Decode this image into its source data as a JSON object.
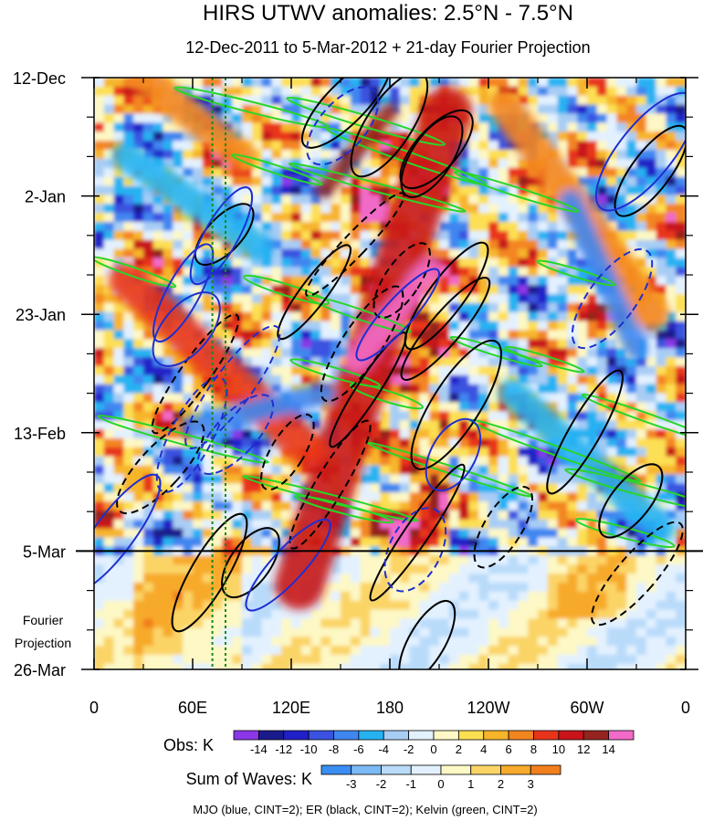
{
  "chart_data": {
    "type": "heatmap",
    "title": "HIRS UTWV anomalies: 2.5°N - 7.5°N",
    "subtitle": "12-Dec-2011 to 5-Mar-2012 + 21-day Fourier Projection",
    "x_ticks": [
      {
        "lon": 0,
        "label": "0"
      },
      {
        "lon": 60,
        "label": "60E"
      },
      {
        "lon": 120,
        "label": "120E"
      },
      {
        "lon": 180,
        "label": "180"
      },
      {
        "lon": 240,
        "label": "120W"
      },
      {
        "lon": 300,
        "label": "60W"
      },
      {
        "lon": 360,
        "label": "0"
      }
    ],
    "y_ticks": [
      {
        "day": 0,
        "label": "12-Dec"
      },
      {
        "day": 21,
        "label": "2-Jan"
      },
      {
        "day": 42,
        "label": "23-Jan"
      },
      {
        "day": 63,
        "label": "13-Feb"
      },
      {
        "day": 84,
        "label": "5-Mar"
      },
      {
        "day": 105,
        "label": "26-Mar"
      }
    ],
    "x_range_deg": [
      0,
      360
    ],
    "y_range_days": [
      0,
      105
    ],
    "observation_end_day": 84,
    "projection_label": [
      "Fourier",
      "Projection"
    ],
    "reference_longitudes_deg": [
      72,
      80
    ],
    "obs_colorbar": {
      "label": "Obs: K",
      "tick_labels": [
        "-14",
        "-12",
        "-10",
        "-8",
        "-6",
        "-4",
        "-2",
        "0",
        "2",
        "4",
        "6",
        "8",
        "10",
        "12",
        "14"
      ],
      "colors": [
        "#8b37e8",
        "#1a1a8c",
        "#2020c8",
        "#3a52e0",
        "#3f86f0",
        "#26b2f2",
        "#a8cdf5",
        "#e3f1ff",
        "#fdf8c5",
        "#fddf52",
        "#f7b52a",
        "#f38521",
        "#e8341a",
        "#c8141a",
        "#95241e",
        "#f26bc8"
      ]
    },
    "waves_colorbar": {
      "label": "Sum of Waves: K",
      "tick_labels": [
        "-3",
        "-2",
        "-1",
        "0",
        "1",
        "2",
        "3"
      ],
      "colors": [
        "#3a8ef2",
        "#7cbaf6",
        "#b9dbfa",
        "#e3f1ff",
        "#fdf8c5",
        "#fbd466",
        "#f7aa2c",
        "#f27f1e"
      ]
    },
    "footer": "MJO (blue, CINT=2); ER (black, CINT=2); Kelvin (green, CINT=2)",
    "contour_colors": {
      "MJO": "#1f2fd0",
      "ER": "#000000",
      "Kelvin": "#28d628"
    },
    "anomaly_bands": [
      {
        "lon_start": 215,
        "day_start": 6,
        "lon_end": 125,
        "day_end": 90,
        "width_deg": 30,
        "value": 10
      },
      {
        "lon_start": 205,
        "day_start": 34,
        "lon_end": 160,
        "day_end": 50,
        "width_deg": 16,
        "value": 14
      },
      {
        "lon_start": 180,
        "day_start": 6,
        "lon_end": 140,
        "day_end": 20,
        "width_deg": 10,
        "value": 13
      },
      {
        "lon_start": 20,
        "day_start": 36,
        "lon_end": 130,
        "day_end": 66,
        "width_deg": 22,
        "value": 8
      },
      {
        "lon_start": 250,
        "day_start": 5,
        "lon_end": 340,
        "day_end": 42,
        "width_deg": 20,
        "value": 6
      },
      {
        "lon_start": 30,
        "day_start": 0,
        "lon_end": 90,
        "day_end": 14,
        "width_deg": 18,
        "value": 6
      },
      {
        "lon_start": 60,
        "day_start": 62,
        "lon_end": 140,
        "day_end": 56,
        "width_deg": 14,
        "value": -8
      },
      {
        "lon_start": 255,
        "day_start": 56,
        "lon_end": 345,
        "day_end": 80,
        "width_deg": 18,
        "value": -6
      },
      {
        "lon_start": 20,
        "day_start": 14,
        "lon_end": 100,
        "day_end": 30,
        "width_deg": 18,
        "value": -6
      },
      {
        "lon_start": 290,
        "day_start": 22,
        "lon_end": 330,
        "day_end": 48,
        "width_deg": 14,
        "value": -8
      }
    ]
  }
}
